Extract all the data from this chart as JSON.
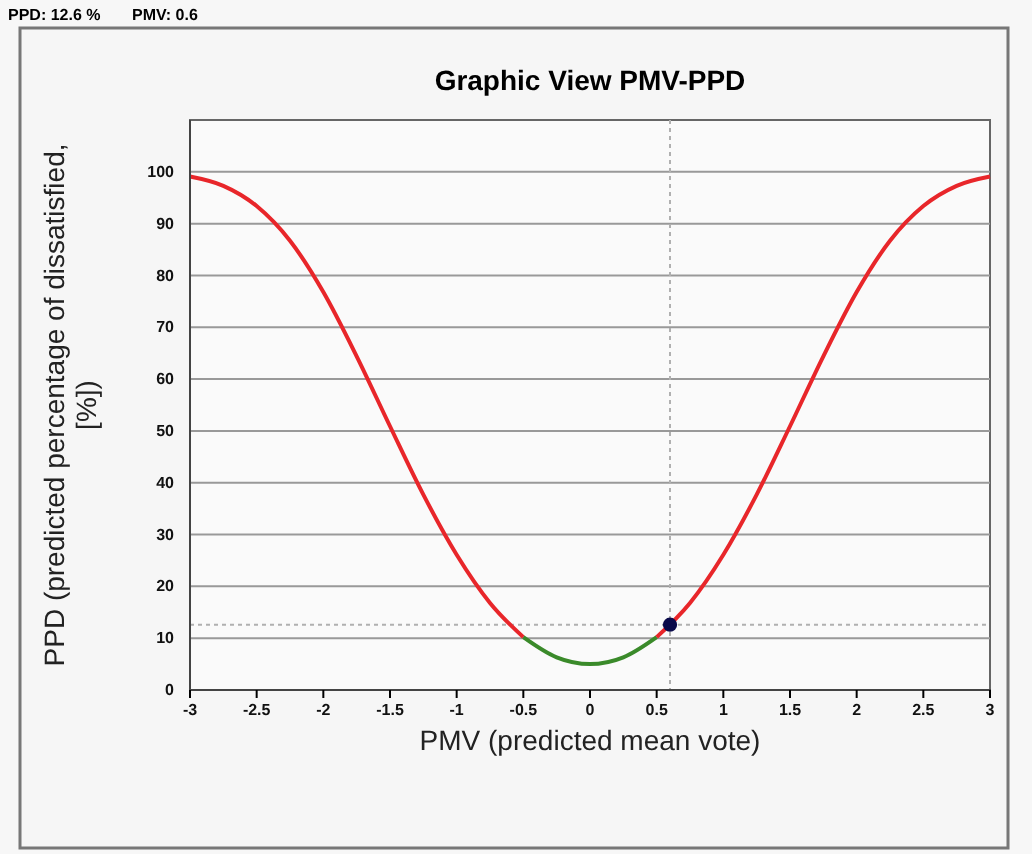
{
  "chart_data": {
    "type": "line",
    "title": "Graphic View PMV-PPD",
    "xlabel": "PMV (predicted mean vote)",
    "ylabel": "PPD (predicted percentage of dissatisfied, [%])",
    "annotations": [
      "PPD: 12.6 %",
      "PMV: 0.6"
    ],
    "xlim": [
      -3,
      3
    ],
    "xticks": [
      -3,
      -2.5,
      -2,
      -1.5,
      -1,
      -0.5,
      0,
      0.5,
      1,
      1.5,
      2,
      2.5,
      3
    ],
    "ylim": [
      0,
      110
    ],
    "yticks": [
      0,
      10,
      20,
      30,
      40,
      50,
      60,
      70,
      80,
      90,
      100
    ],
    "grid": "y",
    "series": [
      {
        "color": "#e8262a",
        "x": [
          -3,
          -2.75,
          -2.5,
          -2.25,
          -2,
          -1.75,
          -1.5,
          -1.25,
          -1,
          -0.75,
          -0.5
        ],
        "values": [
          99.1,
          97.3,
          93.4,
          86.7,
          76.8,
          64.4,
          50.9,
          37.7,
          26.1,
          16.8,
          10.2
        ]
      },
      {
        "color": "#3a8a2a",
        "x": [
          -0.5,
          -0.25,
          0,
          0.25,
          0.5
        ],
        "values": [
          10.2,
          6.3,
          5,
          6.3,
          10.2
        ]
      },
      {
        "color": "#e8262a",
        "x": [
          0.5,
          0.75,
          1,
          1.25,
          1.5,
          1.75,
          2,
          2.25,
          2.5,
          2.75,
          3
        ],
        "values": [
          10.2,
          16.8,
          26.1,
          37.7,
          50.9,
          64.4,
          76.8,
          86.7,
          93.4,
          97.3,
          99.1
        ]
      },
      {
        "type": "scatter",
        "color": "#0a0a4a",
        "x": [
          0.6
        ],
        "values": [
          12.6
        ],
        "marker": "circle"
      }
    ],
    "ref_lines": [
      {
        "axis": "x",
        "value": 0.6,
        "color": "#b0b0b0",
        "line_style": "dotted"
      },
      {
        "axis": "y",
        "value": 12.6,
        "color": "#b0b0b0",
        "line_style": "dotted"
      }
    ]
  }
}
